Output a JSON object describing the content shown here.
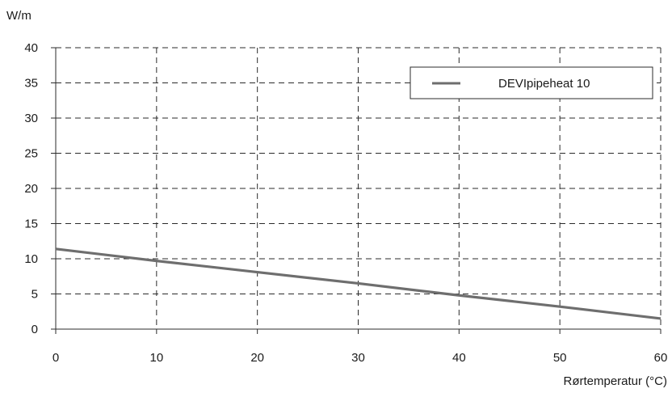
{
  "chart_data": {
    "type": "line",
    "ylabel": "W/m",
    "xlabel": "Rørtemperatur (°C)",
    "xlim": [
      0,
      60
    ],
    "ylim": [
      0,
      40
    ],
    "x_ticks": [
      "0",
      "10",
      "20",
      "30",
      "40",
      "50",
      "60"
    ],
    "y_ticks": [
      "0",
      "5",
      "10",
      "15",
      "20",
      "25",
      "30",
      "35",
      "40"
    ],
    "grid": true,
    "legend_position": "top-right",
    "series": [
      {
        "name": "DEVIpipeheat 10",
        "color": "#6e6e6e",
        "x": [
          0,
          10,
          20,
          30,
          40,
          50,
          60
        ],
        "y": [
          11.4,
          9.7,
          8.1,
          6.5,
          4.8,
          3.2,
          1.5
        ]
      }
    ]
  }
}
